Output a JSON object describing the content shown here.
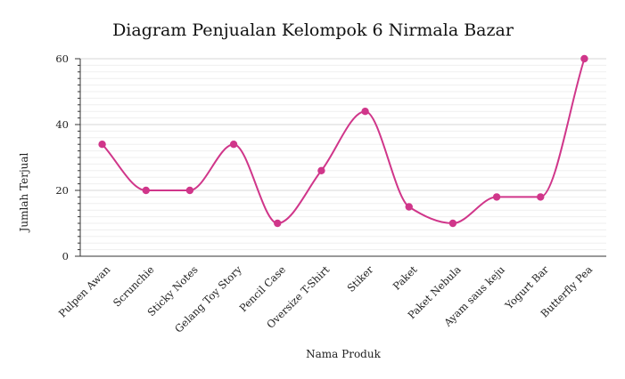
{
  "chart_data": {
    "type": "line",
    "title": "Diagram Penjualan Kelompok 6 Nirmala Bazar",
    "xlabel": "Nama Produk",
    "ylabel": "Jumlah Terjual",
    "categories": [
      "Pulpen Awan",
      "Scrunchie",
      "Sticky Notes",
      "Gelang Toy Story",
      "Pencil Case",
      "Oversize T-Shirt",
      "Stiker",
      "Paket",
      "Paket Nebula",
      "Ayam saus keju",
      "Yogurt Bar",
      "Butterfly Pea"
    ],
    "series": [
      {
        "values": [
          34,
          20,
          20,
          34,
          10,
          26,
          44,
          15,
          10,
          18,
          18,
          60
        ]
      }
    ],
    "ylim": [
      0,
      60
    ],
    "yticks": [
      0,
      20,
      40,
      60
    ],
    "minor_step": 2,
    "grid": true,
    "line_smooth": true,
    "color": "#d0368a"
  }
}
